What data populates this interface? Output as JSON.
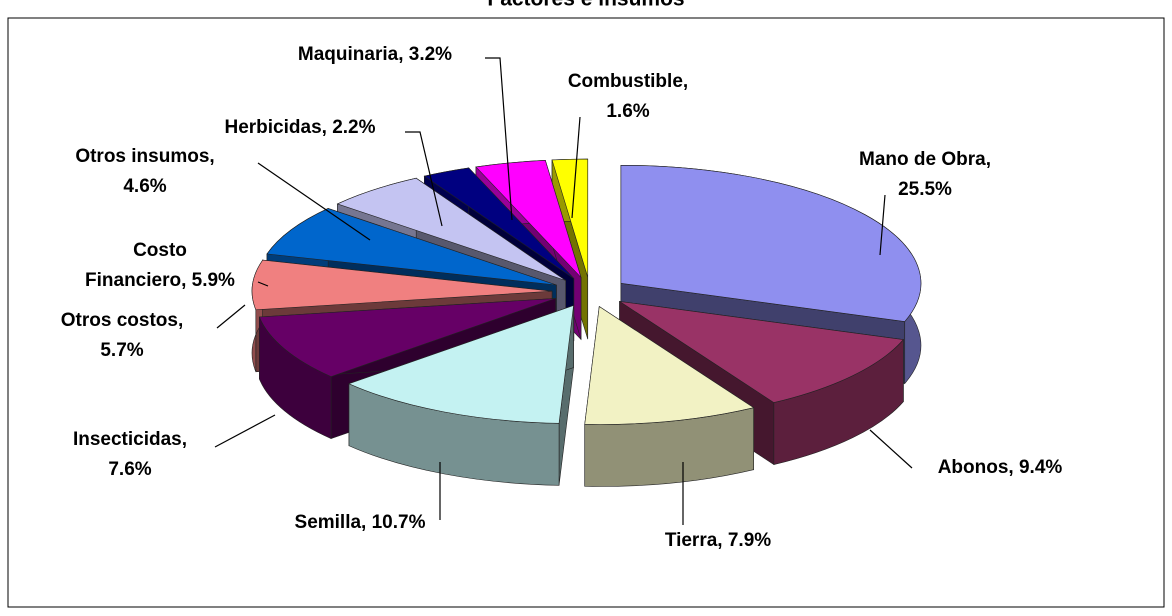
{
  "chart_data": {
    "type": "pie",
    "title": "Factores e insumos",
    "values": [
      25.5,
      9.4,
      7.9,
      10.7,
      7.6,
      5.7,
      5.9,
      4.6,
      2.2,
      3.2,
      1.6
    ],
    "value_labels": [
      "Mano de Obra,\n25.5%",
      "Abonos, 9.4%",
      "Tierra, 7.9%",
      "Semilla, 10.7%",
      "Insecticidas,\n7.6%",
      "Otros costos,\n5.7%",
      "Costo\nFinanciero, 5.9%",
      "Otros insumos,\n4.6%",
      "Herbicidas, 2.2%",
      "Maquinaria, 3.2%",
      "Combustible,\n1.6%"
    ],
    "colors": [
      "#8f8fef",
      "#993366",
      "#f2f2c4",
      "#c4f2f2",
      "#660066",
      "#f08080",
      "#0066cc",
      "#c4c4f2",
      "#000080",
      "#ff00ff",
      "#ffff00"
    ]
  }
}
